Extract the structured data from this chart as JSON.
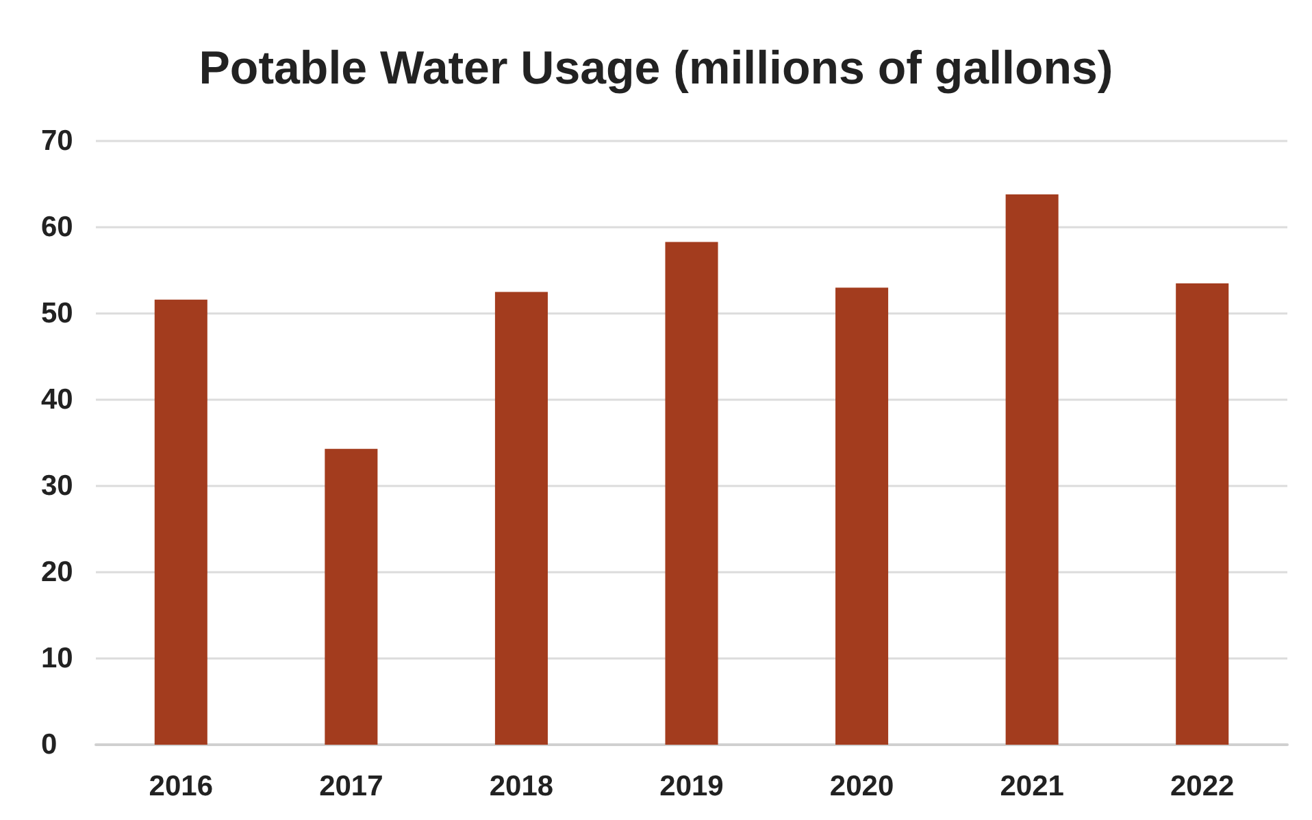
{
  "chart_data": {
    "type": "bar",
    "title": "Potable Water Usage (millions of gallons)",
    "categories": [
      "2016",
      "2017",
      "2018",
      "2019",
      "2020",
      "2021",
      "2022"
    ],
    "values": [
      51.6,
      34.3,
      52.5,
      58.3,
      53.0,
      63.8,
      53.5
    ],
    "color": "#a33c1e",
    "ylim": [
      0,
      70
    ],
    "yticks": [
      0,
      10,
      20,
      30,
      40,
      50,
      60,
      70
    ],
    "grid": "y"
  }
}
